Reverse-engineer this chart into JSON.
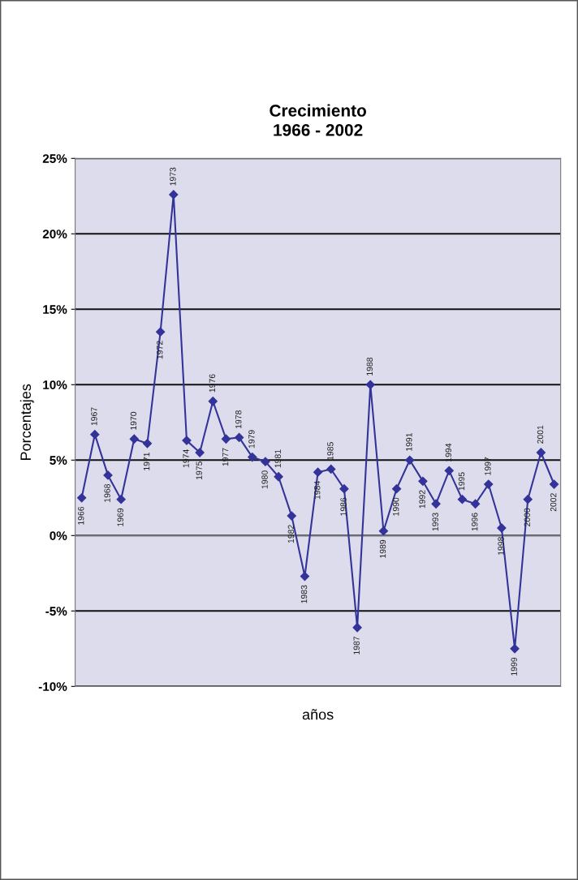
{
  "chart_data": {
    "type": "line",
    "title": "Crecimiento\n1966 - 2002",
    "xlabel": "años",
    "ylabel": "Porcentajes",
    "categories": [
      "1966",
      "1967",
      "1968",
      "1969",
      "1970",
      "1971",
      "1972",
      "1973",
      "1974",
      "1975",
      "1976",
      "1977",
      "1978",
      "1979",
      "1980",
      "1981",
      "1982",
      "1983",
      "1984",
      "1985",
      "1986",
      "1987",
      "1988",
      "1989",
      "1990",
      "1991",
      "1992",
      "1993",
      "1994",
      "1995",
      "1996",
      "1997",
      "1998",
      "1999",
      "2000",
      "2001",
      "2002"
    ],
    "series": [
      {
        "color": "#333399",
        "values": [
          2.5,
          6.7,
          4.0,
          2.4,
          6.4,
          6.1,
          13.5,
          22.6,
          6.3,
          5.5,
          8.9,
          6.4,
          6.5,
          5.2,
          4.9,
          3.9,
          1.3,
          -2.7,
          4.2,
          4.4,
          3.1,
          -6.1,
          10.0,
          0.3,
          3.1,
          5.0,
          3.6,
          2.1,
          4.3,
          2.4,
          2.1,
          3.4,
          0.5,
          -7.5,
          2.4,
          5.5,
          3.4
        ]
      }
    ],
    "ylim": [
      -10,
      25
    ],
    "yticks": [
      {
        "value": -10,
        "label": "-10%"
      },
      {
        "value": -5,
        "label": "-5%"
      },
      {
        "value": 0,
        "label": "0%"
      },
      {
        "value": 5,
        "label": "5%"
      },
      {
        "value": 10,
        "label": "10%"
      },
      {
        "value": 15,
        "label": "15%"
      },
      {
        "value": 20,
        "label": "20%"
      },
      {
        "value": 25,
        "label": "25%"
      }
    ],
    "grid": "y",
    "marker": "diamond",
    "line_style": "solid",
    "legend": false,
    "tick_labels": "y"
  }
}
